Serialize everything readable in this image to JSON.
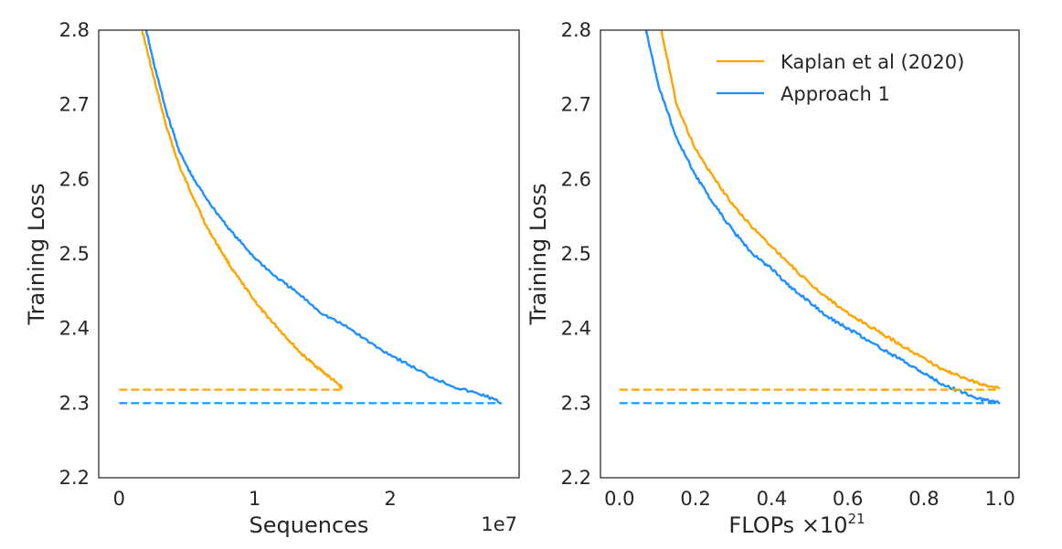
{
  "chart_data": [
    {
      "type": "line",
      "xlabel": "Sequences",
      "ylabel": "Training Loss",
      "x_offset_label": "1e7",
      "xlim": [
        -0.15,
        2.95
      ],
      "ylim": [
        2.2,
        2.8
      ],
      "xticks": [
        0,
        1,
        2
      ],
      "xtick_labels": [
        "0",
        "1",
        "2"
      ],
      "yticks": [
        2.2,
        2.3,
        2.4,
        2.5,
        2.6,
        2.7,
        2.8
      ],
      "ytick_labels": [
        "2.2",
        "2.3",
        "2.4",
        "2.5",
        "2.6",
        "2.7",
        "2.8"
      ],
      "grid": false,
      "series": [
        {
          "color": "#FFA500",
          "style": "solid",
          "x": [
            0.17,
            0.25,
            0.35,
            0.45,
            0.55,
            0.65,
            0.75,
            0.85,
            0.95,
            1.05,
            1.15,
            1.25,
            1.35,
            1.45,
            1.55,
            1.65
          ],
          "y": [
            2.8,
            2.74,
            2.67,
            2.615,
            2.575,
            2.535,
            2.505,
            2.475,
            2.45,
            2.425,
            2.405,
            2.385,
            2.365,
            2.35,
            2.335,
            2.32
          ]
        },
        {
          "color": "#1E90FF",
          "style": "solid",
          "x": [
            0.2,
            0.25,
            0.35,
            0.45,
            0.55,
            0.7,
            0.85,
            1.0,
            1.15,
            1.3,
            1.5,
            1.7,
            1.9,
            2.1,
            2.3,
            2.5,
            2.7,
            2.82
          ],
          "y": [
            2.8,
            2.76,
            2.69,
            2.635,
            2.6,
            2.56,
            2.525,
            2.495,
            2.47,
            2.45,
            2.42,
            2.4,
            2.375,
            2.355,
            2.335,
            2.32,
            2.31,
            2.3
          ]
        },
        {
          "color": "#FFA500",
          "style": "dashed",
          "x": [
            0.0,
            1.65
          ],
          "y": [
            2.318,
            2.318
          ]
        },
        {
          "color": "#1E90FF",
          "style": "dashed",
          "x": [
            0.0,
            2.82
          ],
          "y": [
            2.3,
            2.3
          ]
        }
      ]
    },
    {
      "type": "line",
      "xlabel": "FLOPs ×10",
      "xlabel_superscript": "21",
      "ylabel": "Training Loss",
      "xlim": [
        -0.05,
        1.05
      ],
      "ylim": [
        2.2,
        2.8
      ],
      "xticks": [
        0.0,
        0.2,
        0.4,
        0.6,
        0.8,
        1.0
      ],
      "xtick_labels": [
        "0.0",
        "0.2",
        "0.4",
        "0.6",
        "0.8",
        "1.0"
      ],
      "yticks": [
        2.2,
        2.3,
        2.4,
        2.5,
        2.6,
        2.7,
        2.8
      ],
      "ytick_labels": [
        "2.2",
        "2.3",
        "2.4",
        "2.5",
        "2.6",
        "2.7",
        "2.8"
      ],
      "grid": false,
      "legend_position": "top-right",
      "series": [
        {
          "name": "Kaplan et al (2020)",
          "color": "#FFA500",
          "style": "solid",
          "x": [
            0.11,
            0.15,
            0.2,
            0.25,
            0.3,
            0.35,
            0.4,
            0.45,
            0.5,
            0.55,
            0.6,
            0.65,
            0.7,
            0.75,
            0.8,
            0.85,
            0.9,
            0.95,
            1.0
          ],
          "y": [
            2.8,
            2.7,
            2.64,
            2.6,
            2.565,
            2.535,
            2.51,
            2.485,
            2.46,
            2.44,
            2.42,
            2.405,
            2.39,
            2.375,
            2.36,
            2.345,
            2.335,
            2.325,
            2.32
          ]
        },
        {
          "name": "Approach 1",
          "color": "#1E90FF",
          "style": "solid",
          "x": [
            0.07,
            0.1,
            0.15,
            0.2,
            0.25,
            0.3,
            0.35,
            0.4,
            0.45,
            0.5,
            0.55,
            0.6,
            0.65,
            0.7,
            0.75,
            0.8,
            0.85,
            0.9,
            0.95,
            1.0
          ],
          "y": [
            2.8,
            2.73,
            2.655,
            2.605,
            2.565,
            2.53,
            2.5,
            2.48,
            2.455,
            2.435,
            2.415,
            2.4,
            2.385,
            2.37,
            2.355,
            2.34,
            2.325,
            2.315,
            2.305,
            2.3
          ]
        },
        {
          "color": "#FFA500",
          "style": "dashed",
          "x": [
            0.0,
            1.0
          ],
          "y": [
            2.318,
            2.318
          ]
        },
        {
          "color": "#1E90FF",
          "style": "dashed",
          "x": [
            0.0,
            1.0
          ],
          "y": [
            2.3,
            2.3
          ]
        }
      ]
    }
  ]
}
